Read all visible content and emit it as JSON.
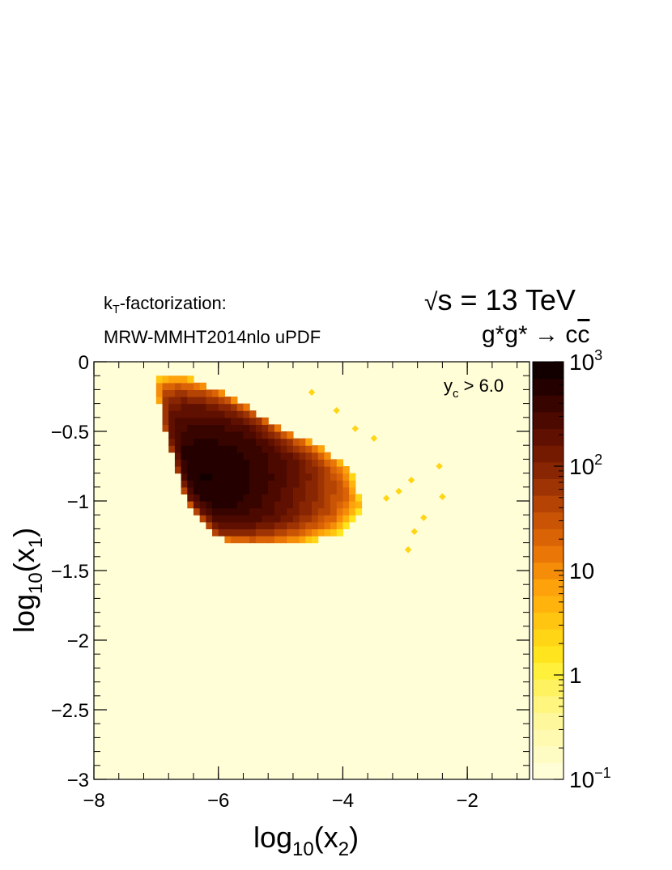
{
  "header": {
    "left_line1_prefix": "k",
    "left_line1_sub": "T",
    "left_line1_suffix": "-factorization:",
    "left_line2": "MRW-MMHT2014nlo uPDF",
    "energy_root": "√",
    "energy_text": "s = 13 TeV",
    "process_prefix": "g*g* → c",
    "process_bar": "c"
  },
  "chart_data": {
    "type": "heatmap",
    "x": {
      "label_base": "log",
      "label_sub": "10",
      "label_var": "x",
      "label_var_sub": "2",
      "range": [
        -8,
        -1
      ],
      "ticks": [
        -8,
        -6,
        -4,
        -2
      ],
      "tick_labels": [
        "−8",
        "−6",
        "−4",
        "−2"
      ]
    },
    "y": {
      "label_base": "log",
      "label_sub": "10",
      "label_var": "x",
      "label_var_sub": "1",
      "range": [
        -3,
        0
      ],
      "ticks": [
        0,
        -0.5,
        -1,
        -1.5,
        -2,
        -2.5,
        -3
      ],
      "tick_labels": [
        "0",
        "−0.5",
        "−1",
        "−1.5",
        "−2",
        "−2.5",
        "−3"
      ]
    },
    "annotation": {
      "main": "y",
      "sub": "c",
      "rest": " > 6.0"
    },
    "z": {
      "scale": "log",
      "range": [
        0.1,
        1000
      ],
      "labels": [
        {
          "value": 1000,
          "base": "10",
          "sup": "3"
        },
        {
          "value": 100,
          "base": "10",
          "sup": "2"
        },
        {
          "value": 10,
          "base": "10",
          "sup": ""
        },
        {
          "value": 1,
          "base": "1",
          "sup": ""
        },
        {
          "value": 0.1,
          "base": "10",
          "sup": "−1"
        }
      ],
      "colors": [
        "#fffed7",
        "#fffcc3",
        "#fffab0",
        "#fff79b",
        "#fff57f",
        "#fff261",
        "#fff13b",
        "#ffe41e",
        "#ffd516",
        "#ffc510",
        "#ffb30c",
        "#fda20a",
        "#f58d08",
        "#e97607",
        "#da6306",
        "#c95405",
        "#b54404",
        "#9e3403",
        "#882502",
        "#741a01",
        "#601000",
        "#4c0900",
        "#380400",
        "#240100",
        "#120000"
      ]
    },
    "region_core": {
      "x": [
        -7.0,
        -6.6,
        -6.0,
        -5.5,
        -5.0,
        -4.4,
        -3.9,
        -3.65,
        -4.1,
        -4.8,
        -5.4,
        -6.0,
        -6.5,
        -6.9
      ],
      "y": [
        -0.12,
        -0.1,
        -0.2,
        -0.33,
        -0.48,
        -0.6,
        -0.75,
        -1.05,
        -1.25,
        -1.3,
        -1.3,
        -1.27,
        -1.0,
        -0.45
      ],
      "peak": {
        "x": -6.2,
        "y": -0.82
      },
      "peak_value": 700
    },
    "sparse_points": [
      {
        "x": -3.3,
        "y": -0.98
      },
      {
        "x": -3.1,
        "y": -0.93
      },
      {
        "x": -2.9,
        "y": -0.85
      },
      {
        "x": -2.85,
        "y": -1.22
      },
      {
        "x": -2.45,
        "y": -0.75
      },
      {
        "x": -2.4,
        "y": -0.97
      },
      {
        "x": -2.7,
        "y": -1.12
      },
      {
        "x": -2.95,
        "y": -1.35
      },
      {
        "x": -3.5,
        "y": -0.55
      },
      {
        "x": -3.8,
        "y": -0.48
      },
      {
        "x": -4.1,
        "y": -0.35
      },
      {
        "x": -4.5,
        "y": -0.22
      }
    ]
  }
}
